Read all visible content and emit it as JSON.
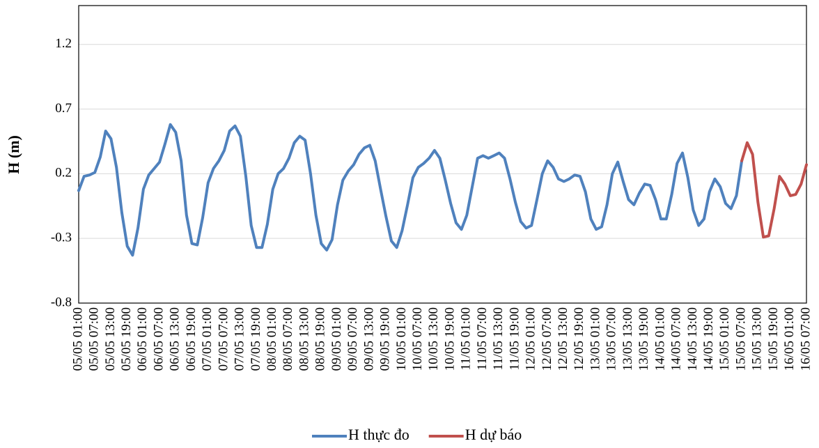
{
  "chart_data": {
    "type": "line",
    "y_label": "H (m)",
    "categories": [
      "05/05 01:00",
      null,
      null,
      "05/05 07:00",
      null,
      null,
      "05/05 13:00",
      null,
      null,
      "05/05 19:00",
      null,
      null,
      "06/05 01:00",
      null,
      null,
      "06/05 07:00",
      null,
      null,
      "06/05 13:00",
      null,
      null,
      "06/05 19:00",
      null,
      null,
      "07/05 01:00",
      null,
      null,
      "07/05 07:00",
      null,
      null,
      "07/05 13:00",
      null,
      null,
      "07/05 19:00",
      null,
      null,
      "08/05 01:00",
      null,
      null,
      "08/05 07:00",
      null,
      null,
      "08/05 13:00",
      null,
      null,
      "08/05 19:00",
      null,
      null,
      "09/05 01:00",
      null,
      null,
      "09/05 07:00",
      null,
      null,
      "09/05 13:00",
      null,
      null,
      "09/05 19:00",
      null,
      null,
      "10/05 01:00",
      null,
      null,
      "10/05 07:00",
      null,
      null,
      "10/05 13:00",
      null,
      null,
      "10/05 19:00",
      null,
      null,
      "11/05 01:00",
      null,
      null,
      "11/05 07:00",
      null,
      null,
      "11/05 13:00",
      null,
      null,
      "11/05 19:00",
      null,
      null,
      "12/05 01:00",
      null,
      null,
      "12/05 07:00",
      null,
      null,
      "12/05 13:00",
      null,
      null,
      "12/05 19:00",
      null,
      null,
      "13/05 01:00",
      null,
      null,
      "13/05 07:00",
      null,
      null,
      "13/05 13:00",
      null,
      null,
      "13/05 19:00",
      null,
      null,
      "14/05 01:00",
      null,
      null,
      "14/05 07:00",
      null,
      null,
      "14/05 13:00",
      null,
      null,
      "14/05 19:00",
      null,
      null,
      "15/05 01:00",
      null,
      null,
      "15/05 07:00",
      null,
      null,
      "15/05 13:00",
      null,
      null,
      "15/05 19:00",
      null,
      null,
      "16/05 01:00",
      null,
      null,
      "16/05 07:00"
    ],
    "series": [
      {
        "name": "H thực đo",
        "color": "#4f81bd",
        "values": [
          0.07,
          0.18,
          0.19,
          0.21,
          0.33,
          0.53,
          0.47,
          0.25,
          -0.1,
          -0.36,
          -0.43,
          -0.22,
          0.08,
          0.19,
          0.24,
          0.29,
          0.43,
          0.58,
          0.52,
          0.3,
          -0.12,
          -0.34,
          -0.35,
          -0.14,
          0.13,
          0.24,
          0.3,
          0.38,
          0.53,
          0.57,
          0.49,
          0.18,
          -0.2,
          -0.37,
          -0.37,
          -0.19,
          0.08,
          0.2,
          0.24,
          0.32,
          0.44,
          0.49,
          0.46,
          0.2,
          -0.12,
          -0.34,
          -0.39,
          -0.31,
          -0.04,
          0.15,
          0.22,
          0.27,
          0.35,
          0.4,
          0.42,
          0.3,
          0.08,
          -0.13,
          -0.32,
          -0.37,
          -0.24,
          -0.04,
          0.17,
          0.25,
          0.28,
          0.32,
          0.38,
          0.32,
          0.15,
          -0.03,
          -0.18,
          -0.23,
          -0.12,
          0.1,
          0.32,
          0.34,
          0.32,
          0.34,
          0.36,
          0.32,
          0.16,
          -0.02,
          -0.17,
          -0.22,
          -0.2,
          0.0,
          0.2,
          0.3,
          0.25,
          0.16,
          0.14,
          0.16,
          0.19,
          0.18,
          0.06,
          -0.15,
          -0.23,
          -0.21,
          -0.04,
          0.2,
          0.29,
          0.14,
          0.0,
          -0.04,
          0.05,
          0.12,
          0.11,
          0.0,
          -0.15,
          -0.15,
          0.04,
          0.28,
          0.36,
          0.17,
          -0.08,
          -0.2,
          -0.15,
          0.06,
          0.16,
          0.1,
          -0.03,
          -0.07,
          0.03,
          0.3,
          null,
          null,
          null,
          null,
          null,
          null,
          null,
          null,
          null,
          null,
          null,
          null
        ]
      },
      {
        "name": "H dự báo",
        "color": "#c0504d",
        "values": [
          null,
          null,
          null,
          null,
          null,
          null,
          null,
          null,
          null,
          null,
          null,
          null,
          null,
          null,
          null,
          null,
          null,
          null,
          null,
          null,
          null,
          null,
          null,
          null,
          null,
          null,
          null,
          null,
          null,
          null,
          null,
          null,
          null,
          null,
          null,
          null,
          null,
          null,
          null,
          null,
          null,
          null,
          null,
          null,
          null,
          null,
          null,
          null,
          null,
          null,
          null,
          null,
          null,
          null,
          null,
          null,
          null,
          null,
          null,
          null,
          null,
          null,
          null,
          null,
          null,
          null,
          null,
          null,
          null,
          null,
          null,
          null,
          null,
          null,
          null,
          null,
          null,
          null,
          null,
          null,
          null,
          null,
          null,
          null,
          null,
          null,
          null,
          null,
          null,
          null,
          null,
          null,
          null,
          null,
          null,
          null,
          null,
          null,
          null,
          null,
          null,
          null,
          null,
          null,
          null,
          null,
          null,
          null,
          null,
          null,
          null,
          null,
          null,
          null,
          null,
          null,
          null,
          null,
          null,
          null,
          null,
          null,
          null,
          0.3,
          0.44,
          0.35,
          -0.02,
          -0.29,
          -0.28,
          -0.07,
          0.18,
          0.12,
          0.03,
          0.04,
          0.12,
          0.27
        ]
      }
    ],
    "ylim": [
      -0.8,
      1.5
    ],
    "yticks": [
      -0.8,
      -0.3,
      0.2,
      0.7,
      1.2
    ],
    "grid": true,
    "legend": "bottom"
  }
}
